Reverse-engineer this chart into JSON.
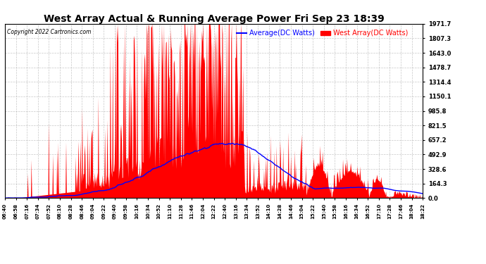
{
  "title": "West Array Actual & Running Average Power Fri Sep 23 18:39",
  "copyright": "Copyright 2022 Cartronics.com",
  "legend_avg": "Average(DC Watts)",
  "legend_west": "West Array(DC Watts)",
  "yticks": [
    0.0,
    164.3,
    328.6,
    492.9,
    657.2,
    821.5,
    985.8,
    1150.1,
    1314.4,
    1478.7,
    1643.0,
    1807.3,
    1971.7
  ],
  "ymax": 1971.7,
  "ymin": 0.0,
  "bg_color": "#ffffff",
  "grid_color": "#b0b0b0",
  "fill_color": "#ff0000",
  "avg_line_color": "#0000ff",
  "xtick_labels": [
    "06:40",
    "06:58",
    "07:16",
    "07:34",
    "07:52",
    "08:10",
    "08:28",
    "08:46",
    "09:04",
    "09:22",
    "09:40",
    "09:58",
    "10:16",
    "10:34",
    "10:52",
    "11:10",
    "11:28",
    "11:46",
    "12:04",
    "12:22",
    "12:40",
    "13:16",
    "13:34",
    "13:52",
    "14:10",
    "14:28",
    "14:46",
    "15:04",
    "15:22",
    "15:40",
    "15:58",
    "16:16",
    "16:34",
    "16:52",
    "17:10",
    "17:28",
    "17:46",
    "18:04",
    "18:22"
  ]
}
